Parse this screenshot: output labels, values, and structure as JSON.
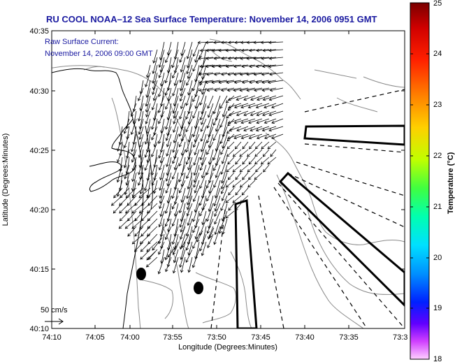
{
  "title": "RU COOL  NOAA–12  Sea Surface Temperature:  November 14, 2006 0951 GMT",
  "current_label_line1": "Raw Surface Current:",
  "current_label_line2": "November 14, 2006 09:00 GMT",
  "scale_label": "50 cm/s",
  "xlabel": "Longitude (Degrees:Minutes)",
  "ylabel": "Latitude (Degrees:Minutes)",
  "colorbar_label": "Temperature (°C)",
  "x_ticks": [
    "74:10",
    "74:05",
    "74:00",
    "73:55",
    "73:50",
    "73:45",
    "73:40",
    "73:35",
    "73:3"
  ],
  "y_ticks": [
    "40:35",
    "40:30",
    "40:25",
    "40:20",
    "40:15",
    "40:10"
  ],
  "colorbar_ticks": [
    "25",
    "24",
    "23",
    "22",
    "21",
    "20",
    "19",
    "18"
  ],
  "colors": {
    "title": "#1a1aa0",
    "frame": "#000000",
    "contour": "#888888"
  }
}
